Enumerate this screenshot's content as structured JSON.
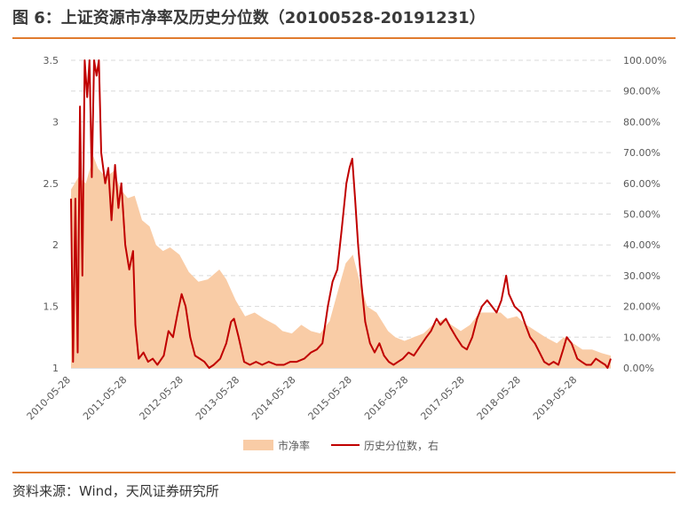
{
  "title": "图 6：上证资源市净率及历史分位数（20100528-20191231）",
  "source": "资料来源：Wind，天风证券研究所",
  "chart_data": {
    "type": "area",
    "x_ticks": [
      "2010-05-28",
      "2011-05-28",
      "2012-05-28",
      "2013-05-28",
      "2014-05-28",
      "2015-05-28",
      "2016-05-28",
      "2017-05-28",
      "2018-05-28",
      "2019-05-28"
    ],
    "x_range": [
      "2010-05-28",
      "2019-12-31"
    ],
    "y_left": {
      "ticks": [
        "1",
        "1.5",
        "2",
        "2.5",
        "3",
        "3.5"
      ],
      "range": [
        1,
        3.5
      ]
    },
    "y_right": {
      "ticks": [
        "0.00%",
        "10.00%",
        "20.00%",
        "30.00%",
        "40.00%",
        "50.00%",
        "60.00%",
        "70.00%",
        "80.00%",
        "90.00%",
        "100.00%"
      ],
      "range": [
        0,
        100
      ]
    },
    "grid": "horizontal dashed",
    "legend_position": "bottom",
    "series": [
      {
        "name": "市净率",
        "axis": "left",
        "style": "area",
        "color": "#f9cca6",
        "points": [
          [
            "2010-05-28",
            2.45
          ],
          [
            "2010-07-15",
            2.55
          ],
          [
            "2010-09-01",
            2.5
          ],
          [
            "2010-10-20",
            2.72
          ],
          [
            "2010-11-20",
            2.62
          ],
          [
            "2011-01-10",
            2.55
          ],
          [
            "2011-03-01",
            2.6
          ],
          [
            "2011-04-15",
            2.45
          ],
          [
            "2011-06-01",
            2.38
          ],
          [
            "2011-07-15",
            2.4
          ],
          [
            "2011-09-01",
            2.2
          ],
          [
            "2011-10-20",
            2.15
          ],
          [
            "2011-12-01",
            2.0
          ],
          [
            "2012-01-15",
            1.95
          ],
          [
            "2012-03-01",
            1.98
          ],
          [
            "2012-05-01",
            1.92
          ],
          [
            "2012-07-01",
            1.78
          ],
          [
            "2012-09-01",
            1.7
          ],
          [
            "2012-11-01",
            1.72
          ],
          [
            "2013-01-15",
            1.8
          ],
          [
            "2013-03-01",
            1.72
          ],
          [
            "2013-05-01",
            1.55
          ],
          [
            "2013-07-01",
            1.42
          ],
          [
            "2013-09-01",
            1.45
          ],
          [
            "2013-11-01",
            1.4
          ],
          [
            "2014-01-15",
            1.35
          ],
          [
            "2014-03-01",
            1.3
          ],
          [
            "2014-05-01",
            1.28
          ],
          [
            "2014-07-01",
            1.35
          ],
          [
            "2014-09-01",
            1.3
          ],
          [
            "2014-11-01",
            1.28
          ],
          [
            "2015-01-01",
            1.38
          ],
          [
            "2015-03-01",
            1.65
          ],
          [
            "2015-04-15",
            1.85
          ],
          [
            "2015-06-01",
            1.92
          ],
          [
            "2015-07-15",
            1.7
          ],
          [
            "2015-09-01",
            1.5
          ],
          [
            "2015-11-01",
            1.45
          ],
          [
            "2016-01-15",
            1.3
          ],
          [
            "2016-03-01",
            1.25
          ],
          [
            "2016-05-01",
            1.22
          ],
          [
            "2016-07-01",
            1.25
          ],
          [
            "2016-09-01",
            1.28
          ],
          [
            "2016-11-01",
            1.35
          ],
          [
            "2017-01-15",
            1.4
          ],
          [
            "2017-03-01",
            1.35
          ],
          [
            "2017-05-01",
            1.3
          ],
          [
            "2017-07-01",
            1.35
          ],
          [
            "2017-09-01",
            1.45
          ],
          [
            "2017-11-01",
            1.45
          ],
          [
            "2018-01-15",
            1.45
          ],
          [
            "2018-03-01",
            1.4
          ],
          [
            "2018-05-01",
            1.42
          ],
          [
            "2018-07-01",
            1.35
          ],
          [
            "2018-09-01",
            1.3
          ],
          [
            "2018-11-01",
            1.25
          ],
          [
            "2019-01-15",
            1.2
          ],
          [
            "2019-03-01",
            1.25
          ],
          [
            "2019-05-01",
            1.2
          ],
          [
            "2019-07-01",
            1.15
          ],
          [
            "2019-09-01",
            1.15
          ],
          [
            "2019-11-01",
            1.12
          ],
          [
            "2019-12-31",
            1.1
          ]
        ]
      },
      {
        "name": "历史分位数，右",
        "axis": "right",
        "style": "line",
        "color": "#c00000",
        "points": [
          [
            "2010-05-28",
            55
          ],
          [
            "2010-06-10",
            2
          ],
          [
            "2010-06-25",
            55
          ],
          [
            "2010-07-10",
            5
          ],
          [
            "2010-07-25",
            85
          ],
          [
            "2010-08-10",
            30
          ],
          [
            "2010-08-25",
            100
          ],
          [
            "2010-09-10",
            88
          ],
          [
            "2010-09-25",
            100
          ],
          [
            "2010-10-10",
            62
          ],
          [
            "2010-10-25",
            100
          ],
          [
            "2010-11-10",
            95
          ],
          [
            "2010-11-25",
            100
          ],
          [
            "2010-12-10",
            70
          ],
          [
            "2011-01-05",
            60
          ],
          [
            "2011-01-25",
            65
          ],
          [
            "2011-02-15",
            48
          ],
          [
            "2011-03-10",
            66
          ],
          [
            "2011-04-01",
            52
          ],
          [
            "2011-04-20",
            60
          ],
          [
            "2011-05-15",
            40
          ],
          [
            "2011-06-10",
            32
          ],
          [
            "2011-07-05",
            38
          ],
          [
            "2011-07-20",
            14
          ],
          [
            "2011-08-10",
            3
          ],
          [
            "2011-09-10",
            5
          ],
          [
            "2011-10-10",
            2
          ],
          [
            "2011-11-10",
            3
          ],
          [
            "2011-12-10",
            1
          ],
          [
            "2012-01-20",
            4
          ],
          [
            "2012-02-20",
            12
          ],
          [
            "2012-03-20",
            10
          ],
          [
            "2012-04-20",
            18
          ],
          [
            "2012-05-15",
            24
          ],
          [
            "2012-06-10",
            20
          ],
          [
            "2012-07-10",
            10
          ],
          [
            "2012-08-10",
            4
          ],
          [
            "2012-09-10",
            3
          ],
          [
            "2012-10-10",
            2
          ],
          [
            "2012-11-10",
            0
          ],
          [
            "2012-12-10",
            1
          ],
          [
            "2013-01-20",
            3
          ],
          [
            "2013-03-01",
            8
          ],
          [
            "2013-04-01",
            15
          ],
          [
            "2013-04-20",
            16
          ],
          [
            "2013-05-20",
            10
          ],
          [
            "2013-06-25",
            2
          ],
          [
            "2013-08-01",
            1
          ],
          [
            "2013-09-10",
            2
          ],
          [
            "2013-10-20",
            1
          ],
          [
            "2013-12-01",
            2
          ],
          [
            "2014-01-20",
            1
          ],
          [
            "2014-03-10",
            1
          ],
          [
            "2014-04-20",
            2
          ],
          [
            "2014-06-01",
            2
          ],
          [
            "2014-07-20",
            3
          ],
          [
            "2014-09-01",
            5
          ],
          [
            "2014-10-10",
            6
          ],
          [
            "2014-11-15",
            8
          ],
          [
            "2014-12-20",
            20
          ],
          [
            "2015-01-20",
            28
          ],
          [
            "2015-02-20",
            32
          ],
          [
            "2015-03-20",
            45
          ],
          [
            "2015-04-20",
            60
          ],
          [
            "2015-05-10",
            65
          ],
          [
            "2015-05-28",
            68
          ],
          [
            "2015-06-15",
            55
          ],
          [
            "2015-07-05",
            40
          ],
          [
            "2015-07-25",
            28
          ],
          [
            "2015-08-20",
            15
          ],
          [
            "2015-09-20",
            8
          ],
          [
            "2015-10-20",
            5
          ],
          [
            "2015-11-20",
            8
          ],
          [
            "2015-12-20",
            4
          ],
          [
            "2016-01-20",
            2
          ],
          [
            "2016-02-20",
            1
          ],
          [
            "2016-03-20",
            2
          ],
          [
            "2016-04-20",
            3
          ],
          [
            "2016-05-28",
            5
          ],
          [
            "2016-07-01",
            4
          ],
          [
            "2016-08-10",
            7
          ],
          [
            "2016-09-20",
            10
          ],
          [
            "2016-10-20",
            12
          ],
          [
            "2016-11-25",
            16
          ],
          [
            "2016-12-20",
            14
          ],
          [
            "2017-01-25",
            16
          ],
          [
            "2017-02-25",
            13
          ],
          [
            "2017-04-01",
            10
          ],
          [
            "2017-05-10",
            7
          ],
          [
            "2017-06-10",
            6
          ],
          [
            "2017-07-15",
            10
          ],
          [
            "2017-08-15",
            16
          ],
          [
            "2017-09-15",
            20
          ],
          [
            "2017-10-20",
            22
          ],
          [
            "2017-11-20",
            20
          ],
          [
            "2017-12-20",
            18
          ],
          [
            "2018-01-20",
            22
          ],
          [
            "2018-02-20",
            30
          ],
          [
            "2018-03-10",
            24
          ],
          [
            "2018-04-15",
            20
          ],
          [
            "2018-05-28",
            18
          ],
          [
            "2018-06-25",
            14
          ],
          [
            "2018-07-25",
            10
          ],
          [
            "2018-08-25",
            8
          ],
          [
            "2018-09-25",
            5
          ],
          [
            "2018-10-25",
            2
          ],
          [
            "2018-11-25",
            1
          ],
          [
            "2018-12-25",
            2
          ],
          [
            "2019-01-25",
            1
          ],
          [
            "2019-02-25",
            6
          ],
          [
            "2019-03-20",
            10
          ],
          [
            "2019-04-20",
            8
          ],
          [
            "2019-05-28",
            3
          ],
          [
            "2019-06-25",
            2
          ],
          [
            "2019-07-25",
            1
          ],
          [
            "2019-08-25",
            1
          ],
          [
            "2019-09-25",
            3
          ],
          [
            "2019-10-25",
            2
          ],
          [
            "2019-11-25",
            1
          ],
          [
            "2019-12-10",
            0
          ],
          [
            "2019-12-31",
            3
          ]
        ]
      }
    ]
  }
}
